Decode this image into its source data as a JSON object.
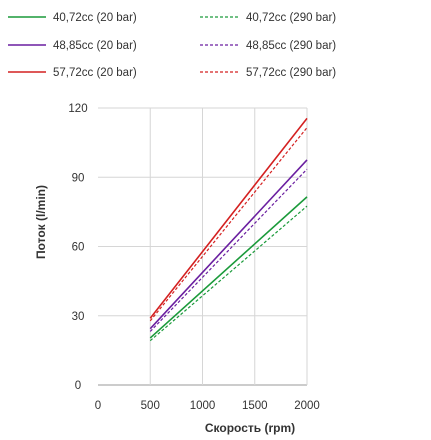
{
  "chart_data": {
    "type": "line",
    "xlabel": "Скорость (rpm)",
    "ylabel": "Поток (l/min)",
    "xlim": [
      0,
      2000
    ],
    "ylim": [
      0,
      120
    ],
    "x_ticks": [
      0,
      500,
      1000,
      1500,
      2000
    ],
    "y_ticks": [
      0,
      30,
      60,
      90,
      120
    ],
    "grid": true,
    "legend_position": "top",
    "series": [
      {
        "name": "40,72cc (20 bar)",
        "color": "#1a9a3a",
        "style": "solid",
        "x": [
          500,
          2000
        ],
        "y": [
          20.4,
          81.5
        ]
      },
      {
        "name": "40,72cc (290 bar)",
        "color": "#1a9a3a",
        "style": "dashed",
        "x": [
          500,
          2000
        ],
        "y": [
          19.2,
          77.5
        ]
      },
      {
        "name": "48,85cc (20 bar)",
        "color": "#6a1fa0",
        "style": "solid",
        "x": [
          500,
          2000
        ],
        "y": [
          24.4,
          97.5
        ]
      },
      {
        "name": "48,85cc (290 bar)",
        "color": "#6a1fa0",
        "style": "dashed",
        "x": [
          500,
          2000
        ],
        "y": [
          23.2,
          93.5
        ]
      },
      {
        "name": "57,72cc (20 bar)",
        "color": "#d42020",
        "style": "solid",
        "x": [
          500,
          2000
        ],
        "y": [
          28.9,
          115.5
        ]
      },
      {
        "name": "57,72cc (290 bar)",
        "color": "#d42020",
        "style": "dashed",
        "x": [
          500,
          2000
        ],
        "y": [
          27.8,
          111.5
        ]
      }
    ]
  }
}
